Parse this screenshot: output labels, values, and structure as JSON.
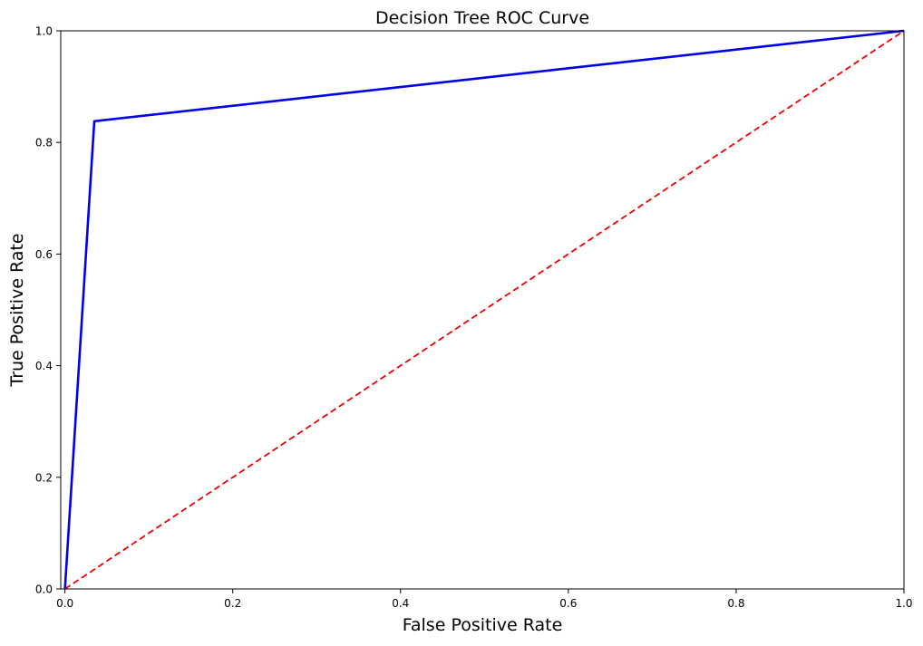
{
  "chart_data": {
    "type": "line",
    "title": "Decision Tree ROC Curve",
    "xlabel": "False Positive Rate",
    "ylabel": "True Positive Rate",
    "xlim": [
      -0.005,
      1.0
    ],
    "ylim": [
      0.0,
      1.0
    ],
    "xticks": [
      0.0,
      0.2,
      0.4,
      0.6,
      0.8,
      1.0
    ],
    "yticks": [
      0.0,
      0.2,
      0.4,
      0.6,
      0.8,
      1.0
    ],
    "xtick_labels": [
      "0.0",
      "0.2",
      "0.4",
      "0.6",
      "0.8",
      "1.0"
    ],
    "ytick_labels": [
      "0.0",
      "0.2",
      "0.4",
      "0.6",
      "0.8",
      "1.0"
    ],
    "grid": false,
    "legend": "none",
    "series": [
      {
        "x": [
          0.0,
          0.035,
          1.0
        ],
        "y": [
          0.0,
          0.838,
          1.0
        ],
        "color": "#0000ee",
        "style": "solid"
      },
      {
        "x": [
          0.0,
          1.0
        ],
        "y": [
          0.0,
          1.0
        ],
        "color": "#ee0000",
        "style": "dashed"
      }
    ]
  }
}
